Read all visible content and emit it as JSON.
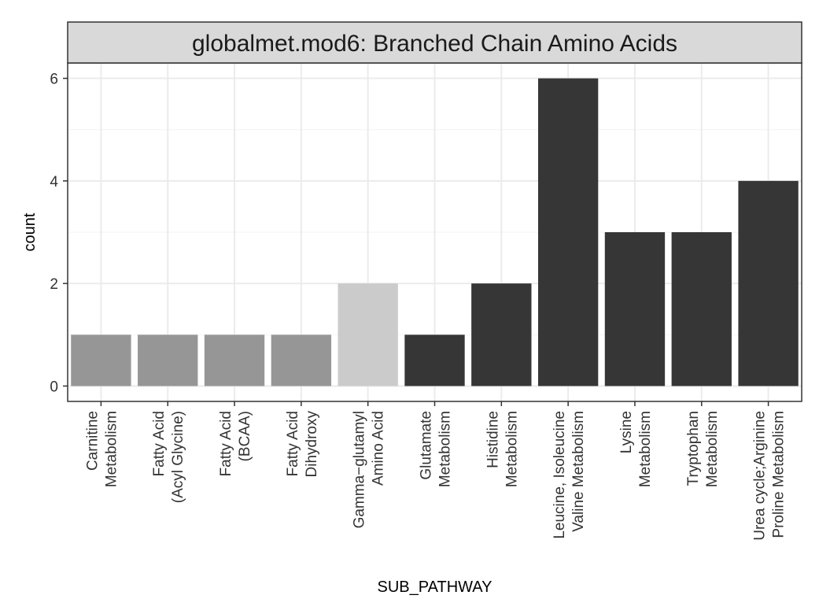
{
  "chart_data": {
    "type": "bar",
    "title": "globalmet.mod6: Branched Chain Amino Acids",
    "xlabel": "SUB_PATHWAY",
    "ylabel": "count",
    "ylim": [
      -0.3,
      6.3
    ],
    "yticks": [
      0,
      2,
      4,
      6
    ],
    "grid": true,
    "legend": "none",
    "categories": [
      [
        "Carnitine",
        "Metabolism"
      ],
      [
        "Fatty Acid",
        "(Acyl Glycine)"
      ],
      [
        "Fatty Acid",
        "(BCAA)"
      ],
      [
        "Fatty Acid",
        "Dihydroxy"
      ],
      [
        "Gamma−glutamyl",
        "Amino Acid"
      ],
      [
        "Glutamate",
        "Metabolism"
      ],
      [
        "Histidine",
        "Metabolism"
      ],
      [
        "Leucine, Isoleucine",
        "Valine Metabolism"
      ],
      [
        "Lysine",
        "Metabolism"
      ],
      [
        "Tryptophan",
        "Metabolism"
      ],
      [
        "Urea cycle;Arginine",
        "Proline Metabolism"
      ]
    ],
    "values": [
      1,
      1,
      1,
      1,
      2,
      1,
      2,
      6,
      3,
      3,
      4
    ],
    "bar_colors": [
      "#969696",
      "#969696",
      "#969696",
      "#969696",
      "#cbcbcb",
      "#363636",
      "#363636",
      "#363636",
      "#363636",
      "#363636",
      "#363636"
    ]
  },
  "colors": {
    "panel_background": "#ffffff",
    "strip_background": "#d9d9d9",
    "grid_major": "#ebebeb",
    "grid_minor": "#f5f5f5",
    "border": "#333333"
  }
}
